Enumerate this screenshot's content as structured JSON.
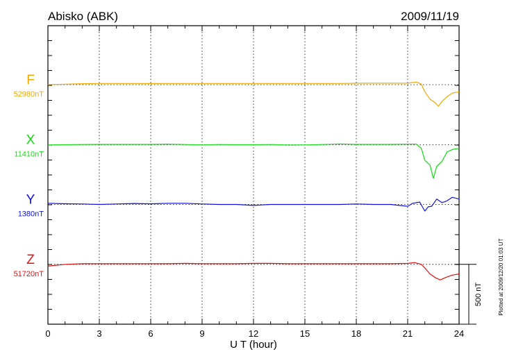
{
  "header": {
    "station": "Abisko (ABK)",
    "date": "2009/11/19"
  },
  "footnote": "Plotted at 2009/12/20 01:03 UT",
  "chart_data": {
    "type": "line",
    "xlabel": "U T (hour)",
    "xlim": [
      0,
      24
    ],
    "xticks": [
      "0",
      "3",
      "6",
      "9",
      "12",
      "15",
      "18",
      "21",
      "24"
    ],
    "grid": "vertical dotted lines every 3 hours",
    "scale_bar": {
      "label": "500 nT",
      "value_nT": 500
    },
    "series": [
      {
        "name": "F",
        "baseline_label": "52980nT",
        "color": "#f0a800",
        "x": [
          0,
          1,
          2,
          3,
          4,
          5,
          6,
          7,
          8,
          9,
          10,
          11,
          12,
          13,
          14,
          15,
          16,
          17,
          18,
          19,
          20,
          21,
          21.5,
          21.8,
          22.0,
          22.3,
          22.6,
          22.8,
          23.0,
          23.3,
          23.6,
          24
        ],
        "y": [
          0,
          4,
          8,
          10,
          10,
          10,
          9,
          10,
          10,
          10,
          10,
          10,
          10,
          10,
          10,
          10,
          10,
          10,
          12,
          12,
          12,
          12,
          22,
          5,
          -60,
          -120,
          -150,
          -180,
          -140,
          -100,
          -70,
          -60
        ]
      },
      {
        "name": "X",
        "baseline_label": "11410nT",
        "color": "#10dd10",
        "x": [
          0,
          1,
          2,
          3,
          4,
          5,
          6,
          7,
          8,
          9,
          10,
          11,
          12,
          13,
          14,
          15,
          16,
          17,
          18,
          19,
          20,
          21,
          21.5,
          21.8,
          22.0,
          22.3,
          22.5,
          22.7,
          23.0,
          23.3,
          23.6,
          24
        ],
        "y": [
          -2,
          0,
          2,
          3,
          3,
          3,
          3,
          5,
          2,
          -2,
          2,
          0,
          0,
          2,
          -3,
          -2,
          2,
          7,
          3,
          3,
          3,
          5,
          5,
          -30,
          -130,
          -170,
          -280,
          -180,
          -140,
          -60,
          -40,
          -30
        ]
      },
      {
        "name": "Y",
        "baseline_label": "1380nT",
        "color": "#1010dd",
        "x": [
          0,
          1,
          2,
          3,
          4,
          5,
          6,
          7,
          8,
          9,
          10,
          11,
          12,
          13,
          14,
          15,
          16,
          17,
          18,
          19,
          20,
          21,
          21.3,
          21.7,
          22.0,
          22.2,
          22.4,
          22.7,
          23.0,
          23.3,
          23.6,
          24
        ],
        "y": [
          10,
          6,
          4,
          0,
          4,
          8,
          5,
          10,
          10,
          4,
          0,
          0,
          -8,
          0,
          0,
          0,
          0,
          0,
          4,
          0,
          0,
          -15,
          10,
          20,
          -55,
          -20,
          -15,
          45,
          15,
          30,
          60,
          45
        ]
      },
      {
        "name": "Z",
        "baseline_label": "51720nT",
        "color": "#dd1010",
        "x": [
          0,
          1,
          2,
          3,
          4,
          5,
          6,
          7,
          8,
          9,
          10,
          11,
          12,
          13,
          14,
          15,
          16,
          17,
          18,
          19,
          20,
          21,
          21.4,
          21.8,
          22.0,
          22.3,
          22.6,
          22.9,
          23.2,
          23.6,
          24
        ],
        "y": [
          -15,
          0,
          5,
          5,
          5,
          5,
          5,
          5,
          8,
          5,
          5,
          5,
          8,
          8,
          5,
          5,
          5,
          5,
          5,
          5,
          5,
          8,
          15,
          0,
          -30,
          -80,
          -110,
          -130,
          -110,
          -90,
          -80
        ]
      }
    ]
  }
}
